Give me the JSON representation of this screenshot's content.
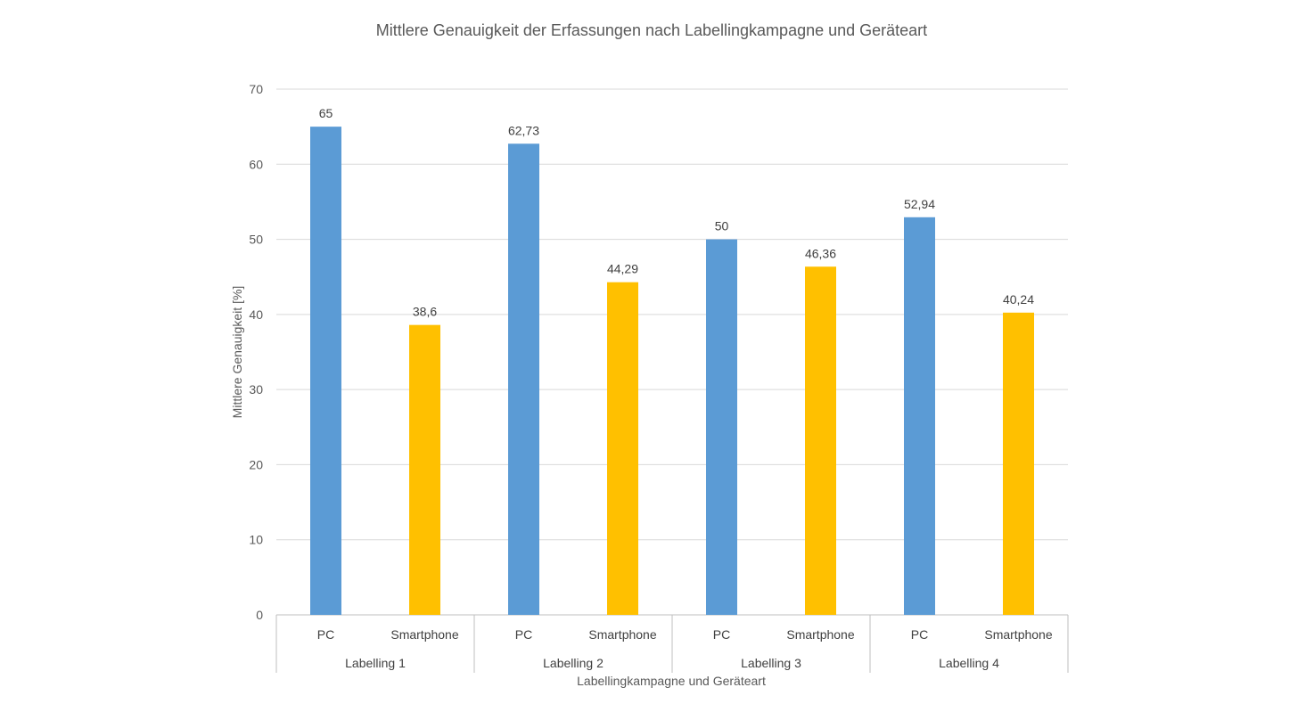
{
  "chart_data": {
    "type": "bar",
    "title": "Mittlere Genauigkeit der Erfassungen nach Labellingkampagne und Geräteart",
    "xlabel": "Labellingkampagne und Geräteart",
    "ylabel": "Mittlere Genauigkeit [%]",
    "ylim": [
      0,
      70
    ],
    "yticks": [
      "0",
      "10",
      "20",
      "30",
      "40",
      "50",
      "60",
      "70"
    ],
    "grid": true,
    "groups": [
      "Labelling 1",
      "Labelling 2",
      "Labelling 3",
      "Labelling 4"
    ],
    "categories": [
      "PC",
      "Smartphone"
    ],
    "bars": [
      {
        "group": "Labelling 1",
        "category": "PC",
        "value": 65,
        "label": "65",
        "color": "#5b9bd5"
      },
      {
        "group": "Labelling 1",
        "category": "Smartphone",
        "value": 38.6,
        "label": "38,6",
        "color": "#ffc000"
      },
      {
        "group": "Labelling 2",
        "category": "PC",
        "value": 62.73,
        "label": "62,73",
        "color": "#5b9bd5"
      },
      {
        "group": "Labelling 2",
        "category": "Smartphone",
        "value": 44.29,
        "label": "44,29",
        "color": "#ffc000"
      },
      {
        "group": "Labelling 3",
        "category": "PC",
        "value": 50,
        "label": "50",
        "color": "#5b9bd5"
      },
      {
        "group": "Labelling 3",
        "category": "Smartphone",
        "value": 46.36,
        "label": "46,36",
        "color": "#ffc000"
      },
      {
        "group": "Labelling 4",
        "category": "PC",
        "value": 52.94,
        "label": "52,94",
        "color": "#5b9bd5"
      },
      {
        "group": "Labelling 4",
        "category": "Smartphone",
        "value": 40.24,
        "label": "40,24",
        "color": "#ffc000"
      }
    ]
  }
}
